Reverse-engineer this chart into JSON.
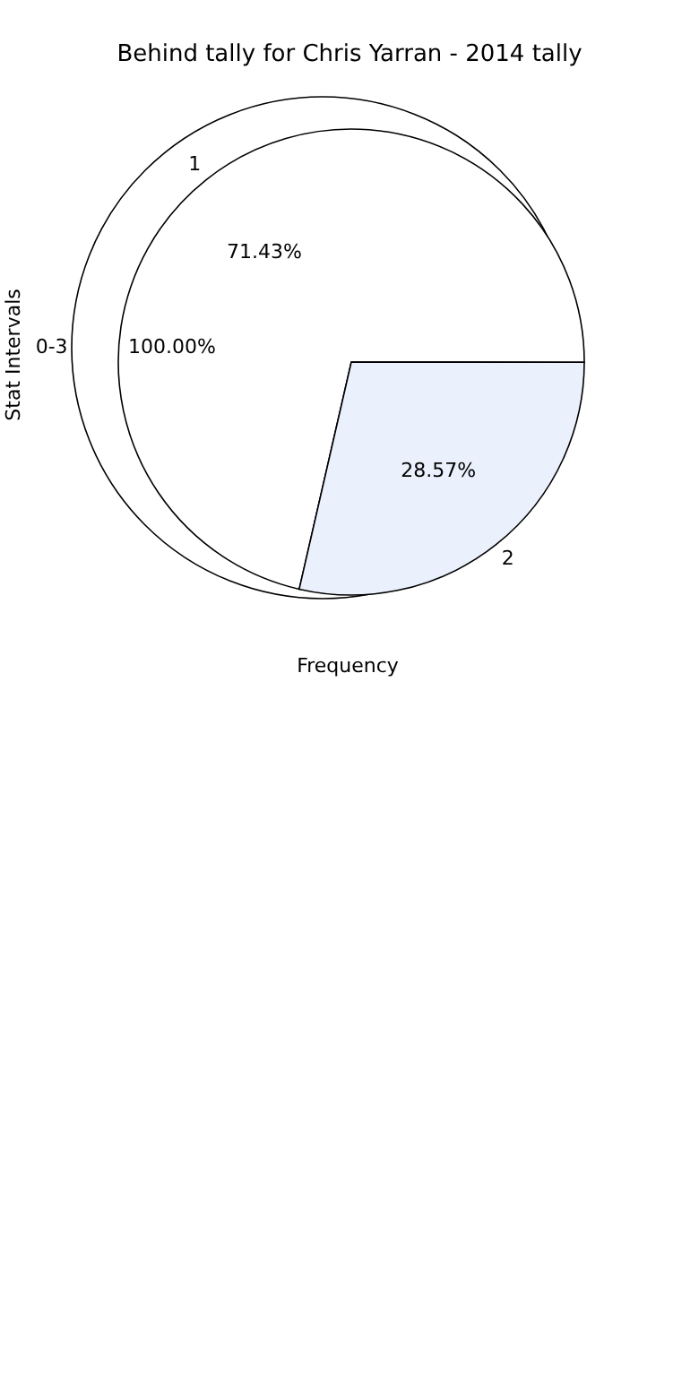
{
  "chart_data": [
    {
      "type": "pie",
      "title": "Behind tally for Chris Yarran - 2014 tally",
      "xlabel": "Frequency",
      "ylabel": "Stat Intervals",
      "categories": [
        "1",
        "2"
      ],
      "values": [
        71.43,
        28.57
      ],
      "colors": [
        "#ffffff",
        "#eaf0fc"
      ],
      "value_labels": [
        "71.43%",
        "28.57%"
      ]
    },
    {
      "type": "pie",
      "categories": [
        "0-3"
      ],
      "values": [
        100
      ],
      "colors": [
        "#ffffff"
      ],
      "value_labels": [
        "100.00%"
      ]
    }
  ]
}
